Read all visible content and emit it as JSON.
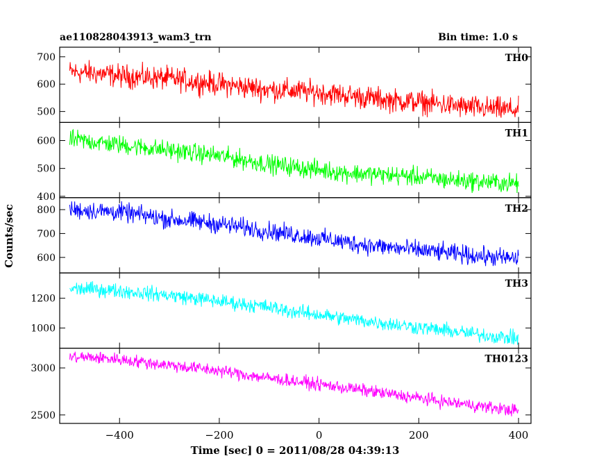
{
  "chart_data": {
    "type": "line",
    "title": "ae110828043913_wam3_trn",
    "bin_time": "Bin time: 1.0 s",
    "xlabel": "Time [sec] 0 = 2011/08/28 04:39:13",
    "ylabel": "Counts/sec",
    "xlim": [
      -520,
      425
    ],
    "xticks": [
      -400,
      -200,
      0,
      200,
      400
    ],
    "grid": false,
    "panels": [
      {
        "name": "TH0",
        "color": "#ff0000",
        "ylim": [
          460,
          735
        ],
        "yticks": [
          500,
          600,
          700
        ],
        "x": [
          -500,
          -450,
          -400,
          -350,
          -300,
          -250,
          -200,
          -150,
          -100,
          -50,
          0,
          50,
          100,
          150,
          200,
          250,
          300,
          350,
          400
        ],
        "y": [
          645,
          640,
          630,
          625,
          620,
          610,
          600,
          590,
          580,
          575,
          570,
          560,
          550,
          540,
          535,
          525,
          515,
          510,
          505
        ],
        "noise": 35
      },
      {
        "name": "TH1",
        "color": "#00ff00",
        "ylim": [
          395,
          665
        ],
        "yticks": [
          400,
          500,
          600
        ],
        "x": [
          -500,
          -450,
          -400,
          -350,
          -300,
          -250,
          -200,
          -150,
          -100,
          -50,
          0,
          50,
          100,
          150,
          200,
          250,
          300,
          350,
          400
        ],
        "y": [
          605,
          595,
          585,
          575,
          565,
          555,
          545,
          530,
          515,
          505,
          495,
          485,
          480,
          475,
          470,
          460,
          455,
          450,
          445
        ],
        "noise": 28
      },
      {
        "name": "TH2",
        "color": "#0000ff",
        "ylim": [
          535,
          850
        ],
        "yticks": [
          600,
          700,
          800
        ],
        "x": [
          -500,
          -450,
          -400,
          -350,
          -300,
          -250,
          -200,
          -150,
          -100,
          -50,
          0,
          50,
          100,
          150,
          200,
          250,
          300,
          350,
          400
        ],
        "y": [
          800,
          795,
          790,
          775,
          760,
          750,
          740,
          725,
          710,
          695,
          680,
          665,
          650,
          640,
          630,
          620,
          610,
          600,
          595
        ],
        "noise": 32
      },
      {
        "name": "TH3",
        "color": "#00ffff",
        "ylim": [
          865,
          1370
        ],
        "yticks": [
          1000,
          1200
        ],
        "x": [
          -500,
          -450,
          -400,
          -350,
          -300,
          -250,
          -200,
          -150,
          -100,
          -50,
          0,
          50,
          100,
          150,
          200,
          250,
          300,
          350,
          400
        ],
        "y": [
          1265,
          1260,
          1250,
          1235,
          1220,
          1200,
          1180,
          1160,
          1140,
          1110,
          1090,
          1065,
          1045,
          1025,
          1005,
          985,
          965,
          945,
          930
        ],
        "noise": 40
      },
      {
        "name": "TH0123",
        "color": "#ff00ff",
        "ylim": [
          2410,
          3210
        ],
        "yticks": [
          2500,
          3000
        ],
        "x": [
          -500,
          -450,
          -400,
          -350,
          -300,
          -250,
          -200,
          -150,
          -100,
          -50,
          0,
          50,
          100,
          150,
          200,
          250,
          300,
          350,
          400
        ],
        "y": [
          3115,
          3110,
          3090,
          3060,
          3030,
          3000,
          2970,
          2930,
          2890,
          2860,
          2825,
          2790,
          2755,
          2715,
          2680,
          2640,
          2610,
          2575,
          2545
        ],
        "noise": 55
      }
    ]
  }
}
